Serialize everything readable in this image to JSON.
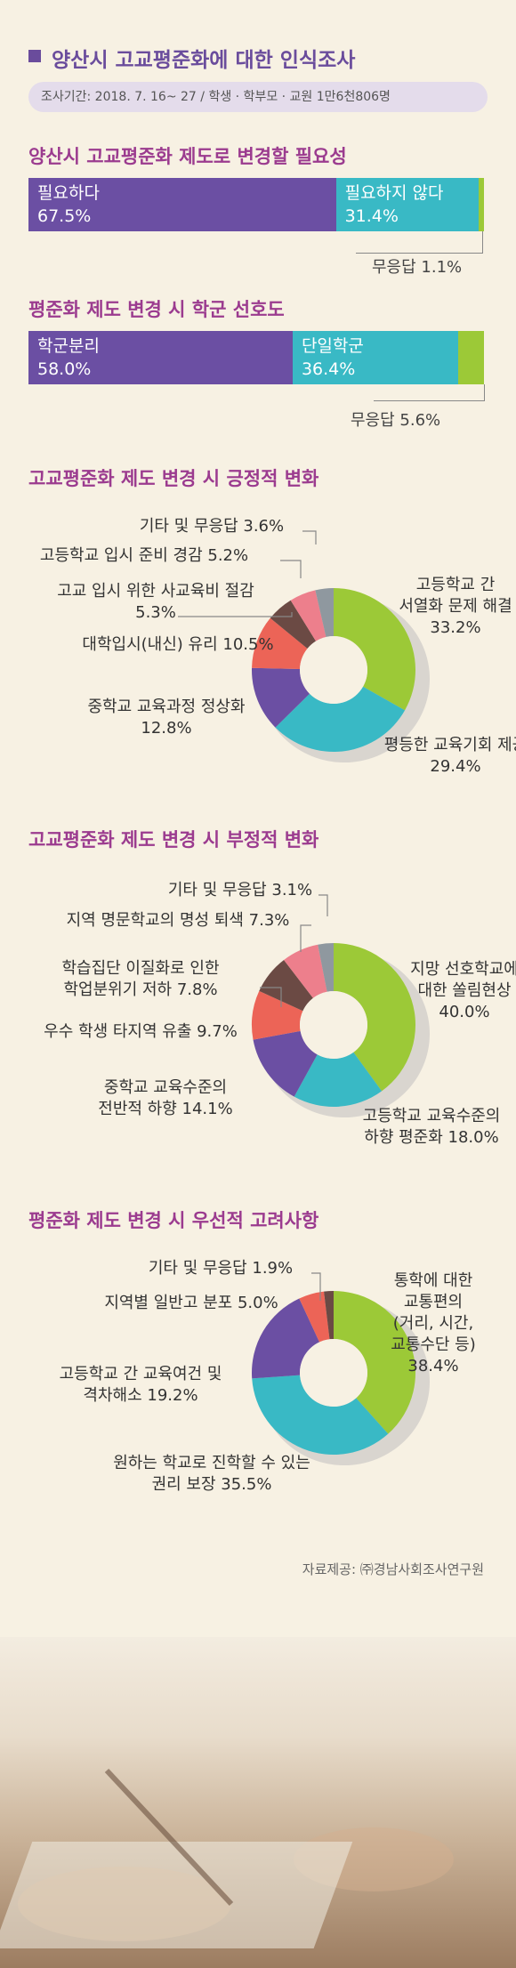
{
  "title": "양산시 고교평준화에 대한 인식조사",
  "survey_period": "조사기간: 2018. 7. 16~ 27 / 학생 · 학부모 · 교원 1만6천806명",
  "source": "자료제공: ㈜경남사회조사연구원",
  "colors": {
    "purple": "#6b4fa3",
    "teal": "#39b9c5",
    "green": "#9cc937",
    "red": "#ec6457",
    "brown": "#6b4a44",
    "pink": "#ed7f8c",
    "gray": "#8f989f",
    "title": "#9b3b8f"
  },
  "chart_data": [
    {
      "type": "bar",
      "title": "양산시 고교평준화 제도로 변경할 필요성",
      "categories": [
        "필요하다",
        "필요하지 않다",
        "무응답"
      ],
      "values": [
        67.5,
        31.4,
        1.1
      ],
      "labels": [
        "67.5%",
        "31.4%",
        "1.1%"
      ],
      "nr_label": "무응답 1.1%"
    },
    {
      "type": "bar",
      "title": "평준화 제도 변경 시 학군 선호도",
      "categories": [
        "학군분리",
        "단일학군",
        "무응답"
      ],
      "values": [
        58.0,
        36.4,
        5.6
      ],
      "labels": [
        "58.0%",
        "36.4%",
        "5.6%"
      ],
      "nr_label": "무응답 5.6%"
    },
    {
      "type": "pie",
      "title": "고교평준화 제도 변경 시 긍정적 변화",
      "categories": [
        "고등학교 간 서열화 문제 해결",
        "평등한 교육기회 제공",
        "중학교 교육과정 정상화",
        "대학입시(내신) 유리",
        "고교 입시 위한 사교육비 절감",
        "고등학교 입시 준비 경감",
        "기타 및 무응답"
      ],
      "values": [
        33.2,
        29.4,
        12.8,
        10.5,
        5.3,
        5.2,
        3.6
      ],
      "slice_colors": [
        "#9cc937",
        "#39b9c5",
        "#6b4fa3",
        "#ec6457",
        "#6b4a44",
        "#ed7f8c",
        "#8f989f"
      ],
      "labels": [
        [
          "고등학교 간",
          "서열화 문제 해결",
          "33.2%"
        ],
        [
          "평등한 교육기회 제공",
          "29.4%"
        ],
        [
          "중학교 교육과정 정상화",
          "12.8%"
        ],
        [
          "대학입시(내신) 유리 10.5%"
        ],
        [
          "고교 입시 위한 사교육비 절감",
          "5.3%"
        ],
        [
          "고등학교 입시 준비 경감 5.2%"
        ],
        [
          "기타 및 무응답 3.6%"
        ]
      ]
    },
    {
      "type": "pie",
      "title": "고교평준화 제도 변경 시 부정적 변화",
      "categories": [
        "지망 선호학교에 대한 쏠림현상",
        "고등학교 교육수준의 하향 평준화",
        "중학교 교육수준의 전반적 하향",
        "우수 학생 타지역 유출",
        "학습집단 이질화로 인한 학업분위기 저하",
        "지역 명문학교의 명성 퇴색",
        "기타 및 무응답"
      ],
      "values": [
        40.0,
        18.0,
        14.1,
        9.7,
        7.8,
        7.3,
        3.1
      ],
      "slice_colors": [
        "#9cc937",
        "#39b9c5",
        "#6b4fa3",
        "#ec6457",
        "#6b4a44",
        "#ed7f8c",
        "#8f989f"
      ],
      "labels": [
        [
          "지망 선호학교에",
          "대한 쏠림현상",
          "40.0%"
        ],
        [
          "고등학교 교육수준의",
          "하향 평준화 18.0%"
        ],
        [
          "중학교 교육수준의",
          "전반적 하향 14.1%"
        ],
        [
          "우수 학생 타지역 유출 9.7%"
        ],
        [
          "학습집단 이질화로 인한",
          "학업분위기 저하 7.8%"
        ],
        [
          "지역 명문학교의 명성 퇴색 7.3%"
        ],
        [
          "기타 및 무응답 3.1%"
        ]
      ]
    },
    {
      "type": "pie",
      "title": "평준화 제도 변경 시 우선적 고려사항",
      "categories": [
        "통학에 대한 교통편의(거리, 시간, 교통수단 등)",
        "원하는 학교로 진학할 수 있는 권리 보장",
        "고등학교 간 교육여건 및 격차해소",
        "지역별 일반고 분포",
        "기타 및 무응답"
      ],
      "values": [
        38.4,
        35.5,
        19.2,
        5.0,
        1.9
      ],
      "slice_colors": [
        "#9cc937",
        "#39b9c5",
        "#6b4fa3",
        "#ec6457",
        "#6b4a44"
      ],
      "labels": [
        [
          "통학에 대한",
          "교통편의",
          "(거리, 시간,",
          "교통수단 등)",
          "38.4%"
        ],
        [
          "원하는 학교로 진학할 수 있는",
          "권리 보장 35.5%"
        ],
        [
          "고등학교 간 교육여건 및",
          "격차해소 19.2%"
        ],
        [
          "지역별 일반고 분포 5.0%"
        ],
        [
          "기타 및 무응답 1.9%"
        ]
      ]
    }
  ]
}
